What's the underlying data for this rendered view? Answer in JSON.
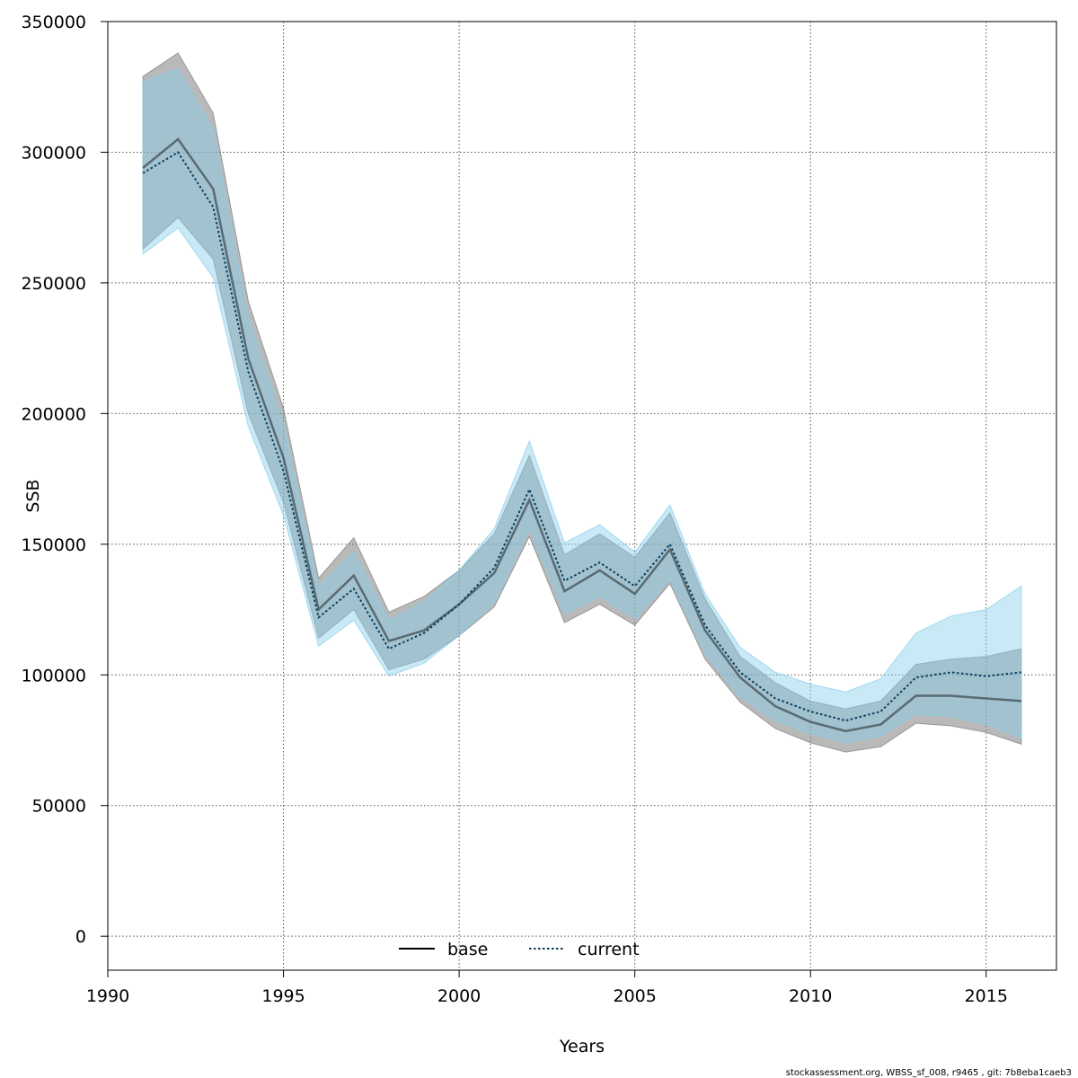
{
  "chart_data": {
    "type": "line",
    "title": "",
    "xlabel": "Years",
    "ylabel": "SSB",
    "xlim": [
      1990,
      2017
    ],
    "ylim": [
      -13000,
      350000
    ],
    "x_ticks": [
      "1990",
      "1995",
      "2000",
      "2005",
      "2010",
      "2015"
    ],
    "y_ticks": [
      "0",
      "50000",
      "100000",
      "150000",
      "200000",
      "250000",
      "300000",
      "350000"
    ],
    "grid": true,
    "legend_position": "bottom-center",
    "x": [
      1991,
      1992,
      1993,
      1994,
      1995,
      1996,
      1997,
      1998,
      1999,
      2000,
      2001,
      2002,
      2003,
      2004,
      2005,
      2006,
      2007,
      2008,
      2009,
      2010,
      2011,
      2012,
      2013,
      2014,
      2015,
      2016
    ],
    "series": [
      {
        "name": "base",
        "color": "#000000",
        "band_color": "#7f7f7f",
        "values": [
          294000,
          305000,
          286000,
          221000,
          183000,
          125000,
          138000,
          113000,
          117000,
          127000,
          139000,
          167000,
          132000,
          140000,
          131000,
          148000,
          117000,
          99000,
          88000,
          82000,
          78500,
          81000,
          92000,
          92000,
          91000,
          90000
        ],
        "lower": [
          263000,
          275000,
          259000,
          200000,
          166000,
          114000,
          125000,
          102000,
          106000,
          115000,
          126000,
          153000,
          120000,
          127000,
          119000,
          135000,
          106000,
          89500,
          79500,
          74000,
          70500,
          72500,
          81500,
          80500,
          78000,
          73500
        ],
        "upper": [
          329000,
          338000,
          315000,
          243000,
          202000,
          137000,
          152500,
          124000,
          130000,
          140000,
          154000,
          184000,
          146000,
          154000,
          145000,
          162000,
          129000,
          107000,
          97000,
          90000,
          87000,
          90000,
          104000,
          106000,
          107000,
          110000
        ]
      },
      {
        "name": "current",
        "color": "#0a3d5e",
        "band_color": "#87ceeb",
        "values": [
          292000,
          300000,
          279000,
          216000,
          178000,
          122000,
          133000,
          110000,
          116000,
          127000,
          141000,
          171000,
          136000,
          143000,
          134000,
          150000,
          119000,
          101000,
          91000,
          86000,
          82500,
          86000,
          99000,
          101000,
          99500,
          101000
        ],
        "lower": [
          261000,
          271000,
          252000,
          195000,
          161000,
          111000,
          121000,
          99500,
          104500,
          115000,
          127500,
          155500,
          123500,
          130000,
          121500,
          136500,
          108000,
          91500,
          82500,
          77500,
          74000,
          76500,
          85000,
          84000,
          81000,
          76000
        ],
        "upper": [
          327000,
          332000,
          309000,
          237000,
          196000,
          134000,
          147000,
          121000,
          128000,
          140000,
          156000,
          189500,
          150500,
          157500,
          147000,
          165000,
          131000,
          110500,
          101000,
          96500,
          93500,
          98500,
          116000,
          122500,
          125000,
          134000
        ]
      }
    ]
  },
  "footer": "stockassessment.org, WBSS_sf_008, r9465 , git: 7b8eba1caeb3"
}
